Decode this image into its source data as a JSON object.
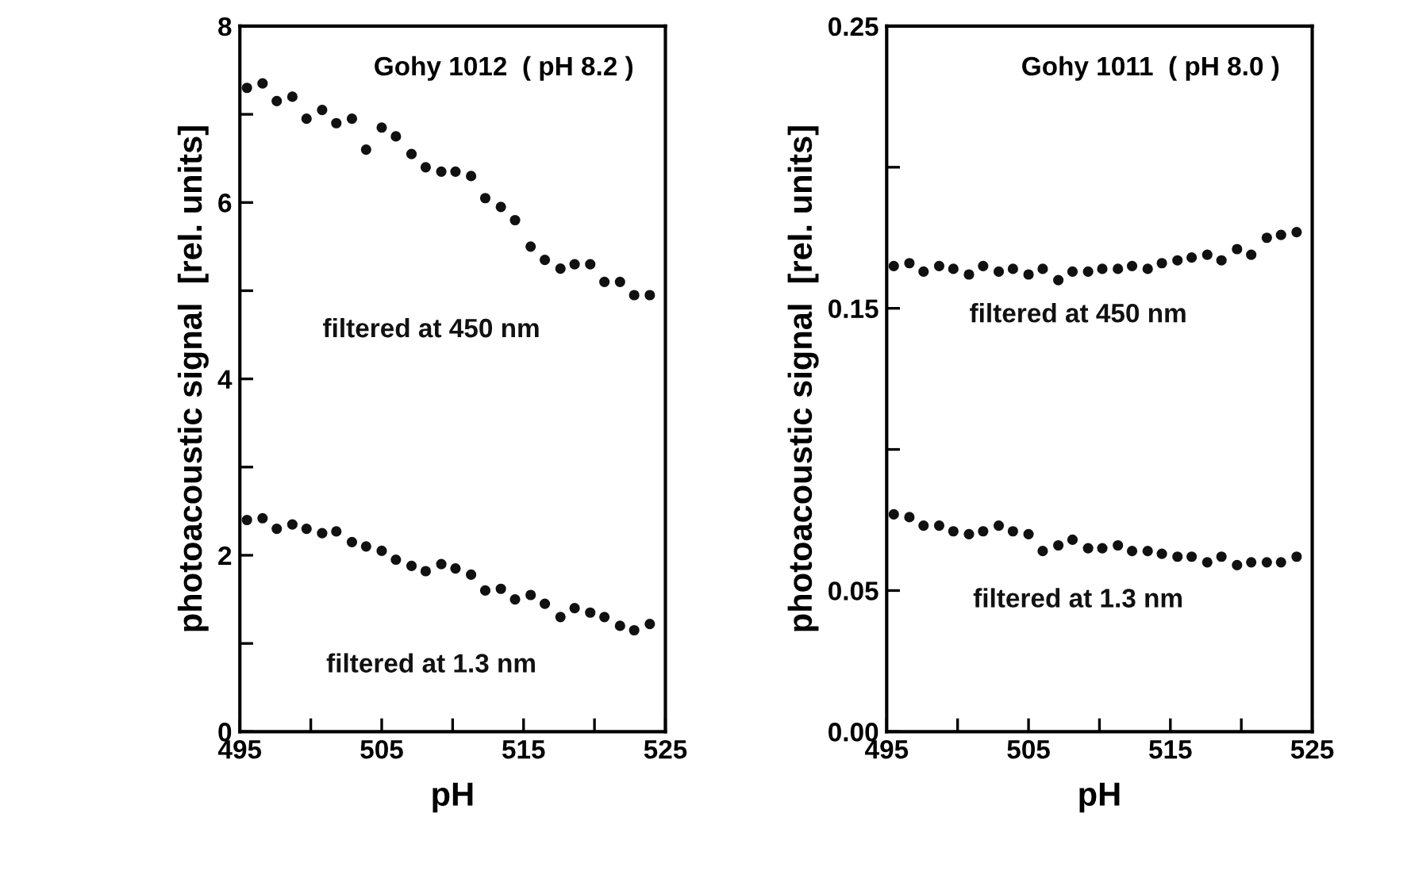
{
  "chart_data": [
    {
      "type": "scatter",
      "annotations": [
        "Gohy 1012  ( pH 8.2 )"
      ],
      "xlabel": "pH",
      "ylabel": "photoacoustic signal  [rel. units]",
      "x": [
        495.5,
        496.6,
        497.6,
        498.7,
        499.7,
        500.8,
        501.8,
        502.9,
        503.9,
        505.0,
        506.0,
        507.1,
        508.1,
        509.2,
        510.2,
        511.3,
        512.3,
        513.4,
        514.4,
        515.5,
        516.5,
        517.6,
        518.6,
        519.7,
        520.7,
        521.8,
        522.8,
        523.9
      ],
      "series": [
        {
          "name": "filtered at 450 nm",
          "color": "#111111",
          "values": [
            7.3,
            7.35,
            7.15,
            7.2,
            6.95,
            7.05,
            6.9,
            6.95,
            6.6,
            6.85,
            6.75,
            6.55,
            6.4,
            6.35,
            6.35,
            6.3,
            6.05,
            5.95,
            5.8,
            5.5,
            5.35,
            5.25,
            5.3,
            5.3,
            5.1,
            5.1,
            4.95,
            4.95
          ]
        },
        {
          "name": "filtered at 1.3 nm",
          "color": "#111111",
          "values": [
            2.4,
            2.42,
            2.3,
            2.35,
            2.3,
            2.25,
            2.27,
            2.15,
            2.1,
            2.05,
            1.95,
            1.88,
            1.82,
            1.9,
            1.85,
            1.78,
            1.6,
            1.62,
            1.5,
            1.55,
            1.45,
            1.3,
            1.4,
            1.35,
            1.3,
            1.2,
            1.15,
            1.22
          ]
        }
      ],
      "xlim": [
        495,
        525
      ],
      "xticks": [
        495,
        {
          "value": 500,
          "label": null
        },
        505,
        {
          "value": 510,
          "label": null
        },
        515,
        {
          "value": 520,
          "label": null
        },
        525
      ],
      "ylim": [
        0,
        8
      ],
      "yticks": [
        0,
        {
          "value": 1,
          "label": null
        },
        2,
        {
          "value": 3,
          "label": null
        },
        4,
        {
          "value": 5,
          "label": null
        },
        6,
        {
          "value": 7,
          "label": null
        },
        8
      ],
      "marker": "circle",
      "grid": false,
      "legend": false
    },
    {
      "type": "scatter",
      "annotations": [
        "Gohy 1011  ( pH 8.0 )"
      ],
      "xlabel": "pH",
      "ylabel": "photoacoustic signal  [rel. units]",
      "x": [
        495.5,
        496.6,
        497.6,
        498.7,
        499.7,
        500.8,
        501.8,
        502.9,
        503.9,
        505.0,
        506.0,
        507.1,
        508.1,
        509.2,
        510.2,
        511.3,
        512.3,
        513.4,
        514.4,
        515.5,
        516.5,
        517.6,
        518.6,
        519.7,
        520.7,
        521.8,
        522.8,
        523.9
      ],
      "series": [
        {
          "name": "filtered at 450 nm",
          "color": "#111111",
          "values": [
            0.165,
            0.166,
            0.163,
            0.165,
            0.164,
            0.162,
            0.165,
            0.163,
            0.164,
            0.162,
            0.164,
            0.16,
            0.163,
            0.163,
            0.164,
            0.164,
            0.165,
            0.164,
            0.166,
            0.167,
            0.168,
            0.169,
            0.167,
            0.171,
            0.169,
            0.175,
            0.176,
            0.177
          ]
        },
        {
          "name": "filtered at 1.3 nm",
          "color": "#111111",
          "values": [
            0.077,
            0.076,
            0.073,
            0.073,
            0.071,
            0.07,
            0.071,
            0.073,
            0.071,
            0.07,
            0.064,
            0.066,
            0.068,
            0.065,
            0.065,
            0.066,
            0.064,
            0.064,
            0.063,
            0.062,
            0.062,
            0.06,
            0.062,
            0.059,
            0.06,
            0.06,
            0.06,
            0.062
          ]
        }
      ],
      "xlim": [
        495,
        525
      ],
      "xticks": [
        495,
        {
          "value": 500,
          "label": null
        },
        505,
        {
          "value": 510,
          "label": null
        },
        515,
        {
          "value": 520,
          "label": null
        },
        525
      ],
      "ylim": [
        0,
        0.25
      ],
      "yticks": [
        {
          "value": 0,
          "label": "0.00"
        },
        0.05,
        {
          "value": 0.1,
          "label": null
        },
        0.15,
        {
          "value": 0.2,
          "label": null
        },
        0.25
      ],
      "marker": "circle",
      "grid": false,
      "legend": false
    }
  ]
}
